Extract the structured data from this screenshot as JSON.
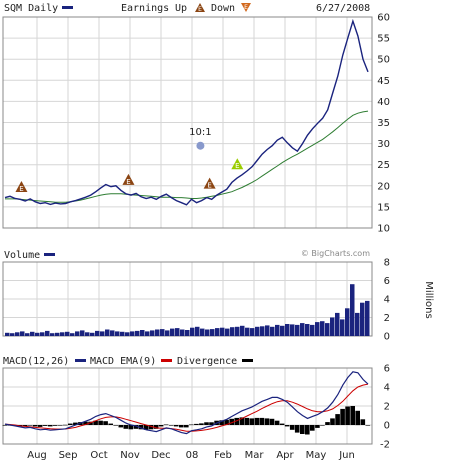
{
  "header": {
    "ticker": "SQM Daily",
    "earnings_label": "Earnings",
    "up_label": "Up",
    "down_label": "Down",
    "date": "6/27/2008"
  },
  "watermark": "© BigCharts.com",
  "colors": {
    "price": "#1a237e",
    "ma": "#2e7d32",
    "volume": "#1a237e",
    "macd": "#1a237e",
    "ema": "#cc0000",
    "divergence": "#000000",
    "earnings_up": "#8b4513",
    "split": "#8899cc",
    "highlight": "#99cc00"
  },
  "chart_data": [
    {
      "type": "line",
      "title": "SQM Daily",
      "y_ticks": [
        10,
        15,
        20,
        25,
        30,
        35,
        40,
        45,
        50,
        55,
        60
      ],
      "ylim": [
        10,
        60
      ],
      "x_labels": [
        "Aug",
        "Sep",
        "Oct",
        "Nov",
        "Dec",
        "08",
        "Feb",
        "Mar",
        "Apr",
        "May",
        "Jun"
      ],
      "series": [
        {
          "role": "price",
          "values": [
            17.2,
            17.5,
            17.0,
            16.8,
            16.4,
            16.9,
            16.2,
            15.8,
            16.0,
            15.6,
            15.9,
            15.7,
            15.8,
            16.2,
            16.5,
            16.9,
            17.3,
            17.8,
            18.6,
            19.5,
            20.3,
            19.8,
            20.0,
            18.9,
            18.1,
            17.8,
            18.2,
            17.4,
            17.0,
            17.3,
            16.8,
            17.5,
            18.0,
            17.2,
            16.5,
            16.0,
            15.5,
            16.8,
            16.0,
            16.5,
            17.2,
            16.8,
            17.8,
            18.5,
            19.2,
            20.8,
            21.8,
            22.6,
            23.5,
            24.5,
            26.0,
            27.5,
            28.6,
            29.5,
            30.8,
            31.5,
            30.2,
            29.0,
            28.2,
            30.0,
            32.0,
            33.5,
            34.8,
            36.0,
            38.0,
            42.0,
            46.0,
            51.0,
            55.0,
            59.0,
            55.5,
            50.0,
            47.0
          ]
        },
        {
          "role": "moving-average",
          "values": [
            16.9,
            16.9,
            16.9,
            16.8,
            16.7,
            16.6,
            16.5,
            16.4,
            16.3,
            16.2,
            16.1,
            16.1,
            16.1,
            16.2,
            16.4,
            16.6,
            16.9,
            17.2,
            17.5,
            17.8,
            18.0,
            18.1,
            18.1,
            18.1,
            18.0,
            17.9,
            17.8,
            17.7,
            17.6,
            17.5,
            17.4,
            17.3,
            17.3,
            17.3,
            17.2,
            17.2,
            17.1,
            17.0,
            17.0,
            17.1,
            17.3,
            17.5,
            17.7,
            18.0,
            18.3,
            18.6,
            19.1,
            19.6,
            20.2,
            20.8,
            21.5,
            22.3,
            23.1,
            23.9,
            24.7,
            25.5,
            26.2,
            26.9,
            27.5,
            28.2,
            28.9,
            29.6,
            30.3,
            31.0,
            31.9,
            32.8,
            33.8,
            34.8,
            35.8,
            36.7,
            37.2,
            37.5,
            37.7
          ]
        }
      ],
      "annotations": {
        "earnings_up": [
          0.05,
          0.34,
          0.56,
          0.635
        ],
        "split_label": "10:1",
        "split_position": 0.535
      }
    },
    {
      "type": "bar",
      "title": "Volume",
      "ylabel": "Millions",
      "y_ticks": [
        0,
        2,
        4,
        6,
        8
      ],
      "ylim": [
        0,
        8
      ],
      "values": [
        0.35,
        0.3,
        0.4,
        0.5,
        0.3,
        0.45,
        0.35,
        0.4,
        0.55,
        0.3,
        0.35,
        0.4,
        0.45,
        0.3,
        0.5,
        0.6,
        0.4,
        0.35,
        0.55,
        0.5,
        0.7,
        0.6,
        0.5,
        0.45,
        0.4,
        0.5,
        0.55,
        0.65,
        0.5,
        0.6,
        0.7,
        0.75,
        0.6,
        0.8,
        0.85,
        0.7,
        0.65,
        0.9,
        1.0,
        0.8,
        0.7,
        0.75,
        0.85,
        0.9,
        0.8,
        0.95,
        1.0,
        1.1,
        0.9,
        0.85,
        1.0,
        1.05,
        1.15,
        1.0,
        1.2,
        1.1,
        1.3,
        1.25,
        1.2,
        1.4,
        1.3,
        1.2,
        1.5,
        1.6,
        1.4,
        2.0,
        2.5,
        1.8,
        3.0,
        5.6,
        2.5,
        3.6,
        3.8
      ]
    },
    {
      "type": "line",
      "title": "MACD",
      "y_ticks": [
        -2,
        0,
        2,
        4,
        6
      ],
      "ylim": [
        -2,
        6
      ],
      "legend": [
        "MACD(12,26)",
        "MACD EMA(9)",
        "Divergence"
      ],
      "series": [
        {
          "role": "macd",
          "values": [
            0.1,
            0.0,
            -0.1,
            -0.2,
            -0.3,
            -0.25,
            -0.4,
            -0.5,
            -0.45,
            -0.55,
            -0.5,
            -0.45,
            -0.4,
            -0.2,
            0.0,
            0.2,
            0.4,
            0.6,
            0.9,
            1.1,
            1.2,
            1.0,
            0.8,
            0.5,
            0.2,
            0.0,
            -0.1,
            -0.3,
            -0.5,
            -0.6,
            -0.7,
            -0.5,
            -0.3,
            -0.4,
            -0.6,
            -0.8,
            -0.9,
            -0.6,
            -0.5,
            -0.4,
            -0.2,
            -0.1,
            0.2,
            0.4,
            0.6,
            0.9,
            1.2,
            1.5,
            1.7,
            1.9,
            2.2,
            2.5,
            2.7,
            2.9,
            2.9,
            2.7,
            2.4,
            1.9,
            1.4,
            1.0,
            0.7,
            0.9,
            1.1,
            1.4,
            1.8,
            2.4,
            3.2,
            4.2,
            5.0,
            5.6,
            5.5,
            4.8,
            4.3
          ]
        },
        {
          "role": "ema",
          "values": [
            0.1,
            0.05,
            0.0,
            -0.1,
            -0.15,
            -0.2,
            -0.25,
            -0.3,
            -0.35,
            -0.4,
            -0.42,
            -0.43,
            -0.42,
            -0.35,
            -0.25,
            -0.1,
            0.05,
            0.25,
            0.45,
            0.65,
            0.8,
            0.85,
            0.85,
            0.75,
            0.6,
            0.45,
            0.3,
            0.15,
            0.0,
            -0.15,
            -0.3,
            -0.35,
            -0.35,
            -0.38,
            -0.45,
            -0.55,
            -0.65,
            -0.65,
            -0.62,
            -0.57,
            -0.48,
            -0.38,
            -0.25,
            -0.1,
            0.05,
            0.25,
            0.45,
            0.7,
            0.95,
            1.2,
            1.45,
            1.75,
            2.0,
            2.25,
            2.45,
            2.55,
            2.55,
            2.4,
            2.2,
            1.95,
            1.7,
            1.5,
            1.4,
            1.4,
            1.5,
            1.7,
            2.05,
            2.5,
            3.05,
            3.6,
            4.0,
            4.2,
            4.3
          ]
        }
      ]
    }
  ]
}
